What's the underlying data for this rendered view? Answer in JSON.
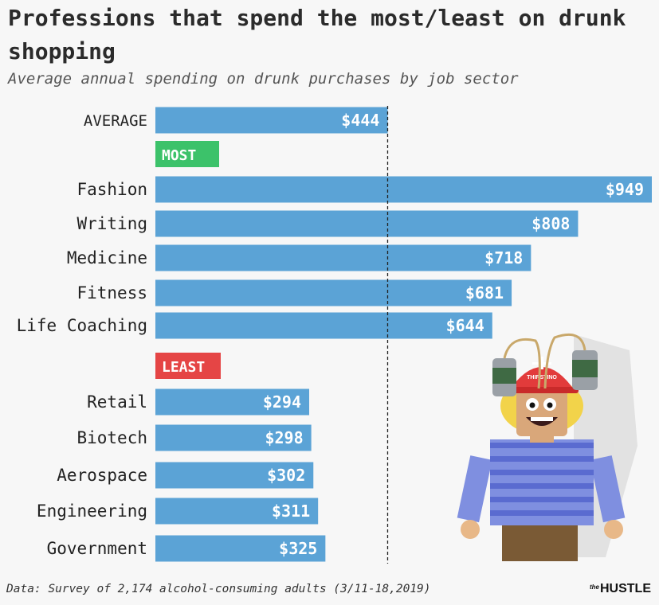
{
  "header": {
    "title": "Professions that spend the most/least on drunk shopping",
    "subtitle": "Average annual spending on drunk purchases by job sector"
  },
  "footer": {
    "source": "Data: Survey of 2,174 alcohol-consuming adults (3/11-18,2019)",
    "brand_small": "the",
    "brand_main": "HUSTLE"
  },
  "colors": {
    "bar": "#5ba3d6",
    "most": "#3cc26a",
    "least": "#e54545",
    "reference_line": "#222222"
  },
  "chart_data": {
    "type": "bar",
    "orientation": "horizontal",
    "title": "Professions that spend the most/least on drunk shopping",
    "subtitle": "Average annual spending on drunk purchases by job sector",
    "unit": "$",
    "average": {
      "label": "AVERAGE",
      "value": 444,
      "value_label": "$444"
    },
    "reference_line": {
      "value": 444,
      "style": "dashed"
    },
    "groups": [
      {
        "label": "MOST",
        "color": "#3cc26a",
        "categories": [
          "Fashion",
          "Writing",
          "Medicine",
          "Fitness",
          "Life Coaching"
        ],
        "values": [
          949,
          808,
          718,
          681,
          644
        ],
        "value_labels": [
          "$949",
          "$808",
          "$718",
          "$681",
          "$644"
        ]
      },
      {
        "label": "LEAST",
        "color": "#e54545",
        "categories": [
          "Retail",
          "Biotech",
          "Aerospace",
          "Engineering",
          "Government"
        ],
        "values": [
          294,
          298,
          302,
          311,
          325
        ],
        "value_labels": [
          "$294",
          "$298",
          "$302",
          "$311",
          "$325"
        ]
      }
    ],
    "xlim": [
      0,
      949
    ],
    "grid": false,
    "legend": "none"
  },
  "illustration": {
    "description_icon": "beer-helmet-mascot-icon",
    "helmet_text": "THIRSTINO"
  }
}
